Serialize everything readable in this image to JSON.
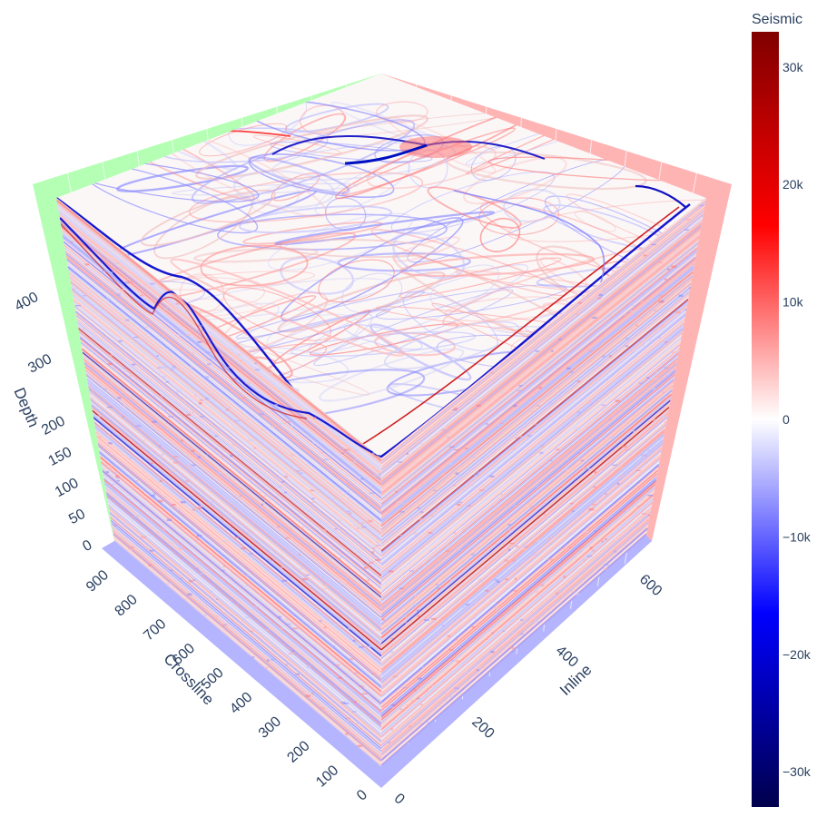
{
  "chart_data": {
    "type": "volume-slices-3d",
    "colorscale": "seismic",
    "colorscale_colors": [
      "#00004c",
      "#0000ff",
      "#ffffff",
      "#ff0000",
      "#800000"
    ],
    "colorbar": {
      "title": "Seismic",
      "range": [
        -33000,
        33000
      ],
      "ticks": [
        {
          "value": 30000,
          "label": "30k"
        },
        {
          "value": 20000,
          "label": "20k"
        },
        {
          "value": 10000,
          "label": "10k"
        },
        {
          "value": 0,
          "label": "0"
        },
        {
          "value": -10000,
          "label": "−10k"
        },
        {
          "value": -20000,
          "label": "−20k"
        },
        {
          "value": -30000,
          "label": "−30k"
        }
      ]
    },
    "axes": {
      "inline": {
        "title": "Inline",
        "range": [
          0,
          650
        ],
        "ticks": [
          {
            "value": 0,
            "label": "0"
          },
          {
            "value": 200,
            "label": "200"
          },
          {
            "value": 400,
            "label": "400"
          },
          {
            "value": 600,
            "label": "600"
          }
        ],
        "plane_color": "#b4b4ff"
      },
      "crossline": {
        "title": "Crossline",
        "range": [
          0,
          950
        ],
        "ticks": [
          {
            "value": 0,
            "label": "0"
          },
          {
            "value": 100,
            "label": "100"
          },
          {
            "value": 200,
            "label": "200"
          },
          {
            "value": 300,
            "label": "300"
          },
          {
            "value": 400,
            "label": "400"
          },
          {
            "value": 500,
            "label": "500"
          },
          {
            "value": 600,
            "label": "600"
          },
          {
            "value": 700,
            "label": "700"
          },
          {
            "value": 800,
            "label": "800"
          },
          {
            "value": 900,
            "label": "900"
          }
        ],
        "plane_color": "#ffb4b4"
      },
      "depth": {
        "title": "Depth",
        "range": [
          0,
          460
        ],
        "ticks": [
          {
            "value": 0,
            "label": "0"
          },
          {
            "value": 50,
            "label": "50"
          },
          {
            "value": 100,
            "label": "100"
          },
          {
            "value": 150,
            "label": "150"
          },
          {
            "value": 200,
            "label": "200"
          },
          {
            "value": 300,
            "label": "300"
          },
          {
            "value": 400,
            "label": "400"
          }
        ],
        "plane_color": "#b4ffb4"
      }
    },
    "faces": [
      "top",
      "left",
      "right"
    ]
  }
}
